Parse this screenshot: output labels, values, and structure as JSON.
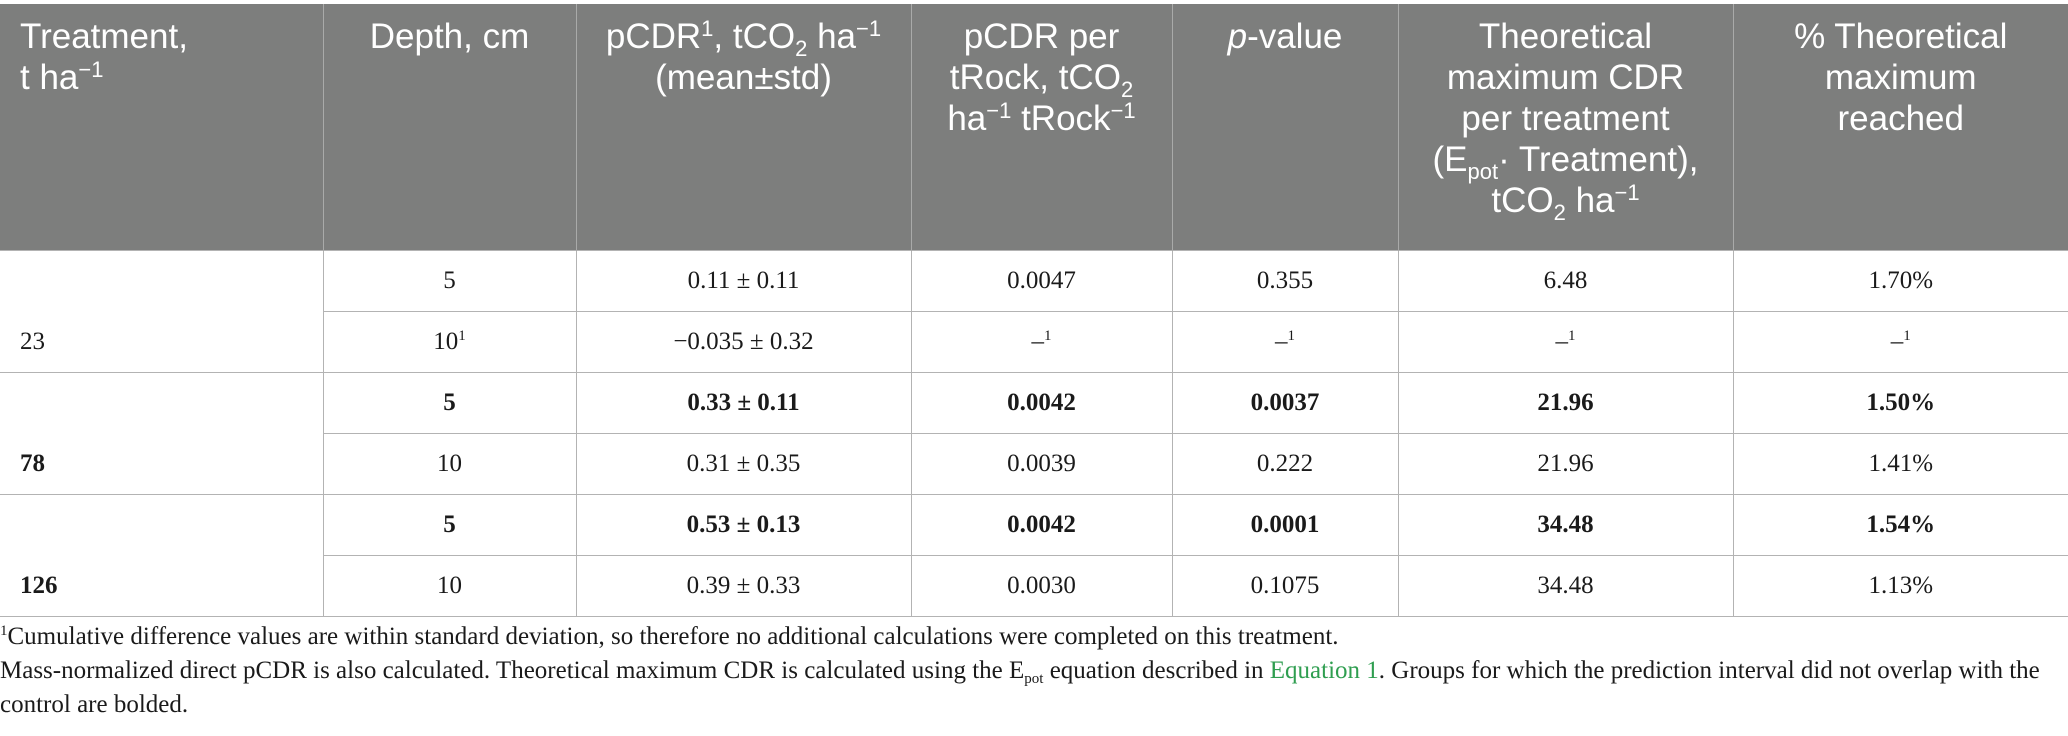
{
  "header": {
    "treatment": {
      "line1": "Treatment,",
      "line2_main": "t ha",
      "line2_sup": "−1"
    },
    "depth": "Depth, cm",
    "pcdr": {
      "a": "pCDR",
      "a_sup": "1",
      "b": ", tCO",
      "b_sub": "2",
      "c": " ha",
      "c_sup": "−1",
      "line2": "(mean±std)"
    },
    "pcdr_per_rock": {
      "line1": "pCDR per",
      "line2a": "tRock, tCO",
      "line2_sub": "2",
      "line3a": "ha",
      "line3_sup1": "−1",
      "line3b": " tRock",
      "line3_sup2": "−1"
    },
    "pvalue": {
      "p": "p",
      "rest": "-value"
    },
    "theoretical_max": {
      "line1": "Theoretical",
      "line2": "maximum CDR",
      "line3": "per treatment",
      "line4a": "(E",
      "line4_sub": "pot",
      "line4b": "· Treatment),",
      "line5a": "tCO",
      "line5_sub": "2",
      "line5b": " ha",
      "line5_sup": "−1"
    },
    "pct_max": {
      "line1": "% Theoretical",
      "line2": "maximum",
      "line3": "reached"
    }
  },
  "groups": [
    {
      "treatment": "23",
      "bold": false,
      "rows": [
        {
          "depth": "5",
          "depth_sup": "",
          "pcdr": "0.11 ± 0.11",
          "per_rock": "0.0047",
          "pvalue": "0.355",
          "theo": "6.48",
          "pct": "1.70%",
          "bold": false,
          "dash_sup": ""
        },
        {
          "depth": "10",
          "depth_sup": "1",
          "pcdr": "−0.035 ± 0.32",
          "per_rock": "–",
          "pvalue": "–",
          "theo": "–",
          "pct": "–",
          "bold": false,
          "dash_sup": "1"
        }
      ]
    },
    {
      "treatment": "78",
      "bold": true,
      "rows": [
        {
          "depth": "5",
          "depth_sup": "",
          "pcdr": "0.33 ± 0.11",
          "per_rock": "0.0042",
          "pvalue": "0.0037",
          "theo": "21.96",
          "pct": "1.50%",
          "bold": true,
          "dash_sup": ""
        },
        {
          "depth": "10",
          "depth_sup": "",
          "pcdr": "0.31 ± 0.35",
          "per_rock": "0.0039",
          "pvalue": "0.222",
          "theo": "21.96",
          "pct": "1.41%",
          "bold": false,
          "dash_sup": ""
        }
      ]
    },
    {
      "treatment": "126",
      "bold": true,
      "rows": [
        {
          "depth": "5",
          "depth_sup": "",
          "pcdr": "0.53 ± 0.13",
          "per_rock": "0.0042",
          "pvalue": "0.0001",
          "theo": "34.48",
          "pct": "1.54%",
          "bold": true,
          "dash_sup": ""
        },
        {
          "depth": "10",
          "depth_sup": "",
          "pcdr": "0.39 ± 0.33",
          "per_rock": "0.0030",
          "pvalue": "0.1075",
          "theo": "34.48",
          "pct": "1.13%",
          "bold": false,
          "dash_sup": ""
        }
      ]
    }
  ],
  "footnotes": {
    "note1_sup": "1",
    "note1": "Cumulative difference values are within standard deviation, so therefore no additional calculations were completed on this treatment.",
    "note2_a": "Mass-normalized direct pCDR is also calculated. Theoretical maximum CDR is calculated using the E",
    "note2_sub": "pot",
    "note2_b": " equation described in ",
    "note2_link": "Equation 1",
    "note2_c": ". Groups for which the prediction interval did not overlap with the control are bolded."
  },
  "colors": {
    "header_bg": "#7d7e7d",
    "header_text": "#ffffff",
    "link": "#2f9e50",
    "grid": "#b3b3b3"
  }
}
